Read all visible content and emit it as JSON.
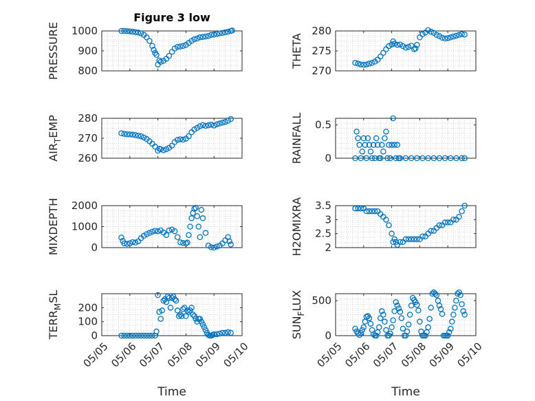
{
  "chart_data": [
    {
      "type": "scatter",
      "title": "Figure 3 low",
      "ylabel": "PRESSURE",
      "xlabel": "",
      "xlim": [
        0,
        5
      ],
      "ylim": [
        800,
        1000
      ],
      "yticks": [
        800,
        900,
        1000
      ],
      "yticklabels": [
        "800",
        "900",
        "1000"
      ],
      "grid": true,
      "series": [
        {
          "x": [
            0.7,
            0.8,
            0.9,
            1.0,
            1.1,
            1.2,
            1.3,
            1.4,
            1.5,
            1.6,
            1.7,
            1.8,
            1.85,
            1.9,
            1.95,
            2.0,
            2.05,
            2.1,
            2.2,
            2.3,
            2.4,
            2.5,
            2.6,
            2.7,
            2.8,
            2.9,
            3.0,
            3.1,
            3.2,
            3.3,
            3.4,
            3.5,
            3.6,
            3.7,
            3.8,
            3.9,
            4.0,
            4.1,
            4.2,
            4.3,
            4.4,
            4.5,
            4.6,
            4.65
          ],
          "y": [
            1000,
            1000,
            999,
            998,
            996,
            994,
            992,
            988,
            980,
            968,
            950,
            925,
            905,
            890,
            880,
            832,
            852,
            845,
            850,
            860,
            875,
            895,
            912,
            920,
            922,
            925,
            930,
            940,
            950,
            958,
            962,
            968,
            970,
            972,
            975,
            980,
            982,
            985,
            988,
            990,
            993,
            996,
            1000,
            1002
          ]
        }
      ]
    },
    {
      "type": "scatter",
      "ylabel": "THETA",
      "xlabel": "",
      "xlim": [
        0,
        5
      ],
      "ylim": [
        270,
        280
      ],
      "yticks": [
        270,
        275,
        280
      ],
      "yticklabels": [
        "270",
        "275",
        "280"
      ],
      "grid": true,
      "series": [
        {
          "x": [
            0.7,
            0.8,
            0.9,
            1.0,
            1.1,
            1.2,
            1.3,
            1.4,
            1.5,
            1.6,
            1.7,
            1.8,
            1.9,
            2.0,
            2.05,
            2.1,
            2.2,
            2.3,
            2.4,
            2.5,
            2.6,
            2.7,
            2.8,
            2.85,
            2.9,
            3.0,
            3.1,
            3.2,
            3.3,
            3.4,
            3.5,
            3.6,
            3.7,
            3.8,
            3.9,
            4.0,
            4.1,
            4.2,
            4.3,
            4.4,
            4.5,
            4.6
          ],
          "y": [
            272,
            271.8,
            271.6,
            271.5,
            271.6,
            271.8,
            272,
            272.3,
            272.8,
            273.6,
            274.5,
            275.4,
            276.2,
            276.6,
            277.4,
            276.8,
            276.5,
            276.6,
            276.2,
            275.8,
            276,
            276.3,
            275.4,
            275.6,
            276.5,
            278.4,
            279.2,
            279.6,
            280.2,
            279.8,
            279.5,
            279,
            278.7,
            278.3,
            278.1,
            278.2,
            278.4,
            278.6,
            278.8,
            279,
            279.2,
            279.1
          ]
        }
      ]
    },
    {
      "type": "scatter",
      "ylabel": "AIR_TEMP",
      "xlabel": "",
      "xlim": [
        0,
        5
      ],
      "ylim": [
        260,
        280
      ],
      "yticks": [
        260,
        270,
        280
      ],
      "yticklabels": [
        "260",
        "270",
        "280"
      ],
      "grid": true,
      "series": [
        {
          "x": [
            0.7,
            0.8,
            0.9,
            1.0,
            1.1,
            1.2,
            1.3,
            1.4,
            1.5,
            1.6,
            1.7,
            1.8,
            1.9,
            2.0,
            2.05,
            2.1,
            2.2,
            2.3,
            2.4,
            2.5,
            2.6,
            2.7,
            2.8,
            2.9,
            3.0,
            3.1,
            3.2,
            3.3,
            3.4,
            3.5,
            3.6,
            3.7,
            3.8,
            3.9,
            4.0,
            4.1,
            4.2,
            4.3,
            4.4,
            4.5,
            4.6
          ],
          "y": [
            272.5,
            272.2,
            272,
            271.9,
            271.8,
            271.6,
            271.3,
            271,
            270.4,
            269.6,
            268.5,
            267.2,
            265.8,
            263.8,
            264.8,
            264.5,
            264,
            264.5,
            265.2,
            266.3,
            268.1,
            269.2,
            269.5,
            269.3,
            269.8,
            271,
            273,
            274.4,
            275.2,
            276,
            276.6,
            276.2,
            276.5,
            276.8,
            276.4,
            277,
            277.4,
            277.8,
            278.2,
            278.8,
            279.6
          ]
        }
      ]
    },
    {
      "type": "scatter",
      "ylabel": "RAINFALL",
      "xlabel": "",
      "xlim": [
        0,
        5
      ],
      "ylim": [
        0,
        0.6
      ],
      "yticks": [
        0,
        0.5
      ],
      "yticklabels": [
        "0",
        "0.5"
      ],
      "grid": true,
      "series": [
        {
          "x": [
            0.7,
            0.75,
            0.8,
            0.85,
            0.9,
            0.95,
            1.0,
            1.05,
            1.1,
            1.15,
            1.2,
            1.25,
            1.3,
            1.35,
            1.4,
            1.45,
            1.5,
            1.55,
            1.6,
            1.65,
            1.7,
            1.75,
            1.8,
            1.85,
            1.9,
            1.95,
            2.0,
            2.05,
            2.1,
            2.15,
            2.2,
            2.25,
            2.3,
            2.5,
            2.7,
            2.9,
            3.1,
            3.3,
            3.5,
            3.7,
            3.9,
            4.1,
            4.3,
            4.5,
            4.6
          ],
          "y": [
            0,
            0.4,
            0.3,
            0.2,
            0,
            0.1,
            0.3,
            0.2,
            0,
            0.3,
            0.2,
            0.1,
            0,
            0.2,
            0,
            0.3,
            0.2,
            0,
            0,
            0.2,
            0.1,
            0.3,
            0.4,
            0,
            0.2,
            0,
            0.2,
            0.6,
            0.2,
            0,
            0.2,
            0,
            0,
            0,
            0,
            0,
            0,
            0,
            0,
            0,
            0,
            0,
            0,
            0,
            0
          ]
        }
      ]
    },
    {
      "type": "scatter",
      "ylabel": "MIXDEPTH",
      "xlabel": "",
      "xlim": [
        0,
        5
      ],
      "ylim": [
        0,
        2000
      ],
      "yticks": [
        0,
        1000,
        2000
      ],
      "yticklabels": [
        "0",
        "1000",
        "2000"
      ],
      "grid": true,
      "series": [
        {
          "x": [
            0.7,
            0.75,
            0.8,
            0.9,
            1.0,
            1.1,
            1.2,
            1.3,
            1.4,
            1.5,
            1.6,
            1.7,
            1.8,
            1.9,
            2.0,
            2.1,
            2.2,
            2.3,
            2.4,
            2.5,
            2.6,
            2.7,
            2.8,
            2.9,
            3.0,
            3.05,
            3.1,
            3.15,
            3.2,
            3.25,
            3.3,
            3.35,
            3.4,
            3.45,
            3.5,
            3.55,
            3.6,
            3.7,
            3.8,
            3.9,
            4.0,
            4.1,
            4.2,
            4.3,
            4.4,
            4.5,
            4.55,
            4.6
          ],
          "y": [
            480,
            320,
            200,
            180,
            210,
            260,
            240,
            300,
            450,
            560,
            640,
            700,
            760,
            800,
            780,
            820,
            720,
            600,
            820,
            860,
            780,
            500,
            250,
            220,
            200,
            240,
            600,
            1000,
            1400,
            1650,
            1850,
            1900,
            1500,
            1000,
            500,
            1800,
            1400,
            700,
            100,
            20,
            0,
            50,
            100,
            200,
            350,
            500,
            300,
            150
          ]
        }
      ]
    },
    {
      "type": "scatter",
      "ylabel": "H2OMIXRA",
      "xlabel": "",
      "xlim": [
        0,
        5
      ],
      "ylim": [
        2,
        3.5
      ],
      "yticks": [
        2,
        2.5,
        3,
        3.5
      ],
      "yticklabels": [
        "2",
        "2.5",
        "3",
        "3.5"
      ],
      "grid": true,
      "series": [
        {
          "x": [
            0.7,
            0.8,
            0.9,
            1.0,
            1.1,
            1.2,
            1.3,
            1.4,
            1.5,
            1.6,
            1.7,
            1.8,
            1.9,
            2.0,
            2.05,
            2.1,
            2.15,
            2.2,
            2.3,
            2.4,
            2.5,
            2.6,
            2.7,
            2.8,
            2.9,
            3.0,
            3.1,
            3.2,
            3.3,
            3.4,
            3.5,
            3.6,
            3.7,
            3.8,
            3.9,
            4.0,
            4.1,
            4.2,
            4.3,
            4.4,
            4.5,
            4.6
          ],
          "y": [
            3.4,
            3.4,
            3.4,
            3.4,
            3.3,
            3.3,
            3.3,
            3.3,
            3.3,
            3.2,
            3.1,
            3.0,
            2.8,
            2.5,
            2.2,
            2.3,
            2.2,
            2.1,
            2.2,
            2.2,
            2.3,
            2.3,
            2.3,
            2.3,
            2.3,
            2.3,
            2.4,
            2.4,
            2.5,
            2.6,
            2.6,
            2.7,
            2.8,
            2.8,
            2.9,
            2.9,
            2.9,
            3.0,
            3.0,
            3.1,
            3.3,
            3.5
          ]
        }
      ]
    },
    {
      "type": "scatter",
      "ylabel": "TERR_MSL",
      "xlabel": "Time",
      "xlim": [
        0,
        5
      ],
      "ylim": [
        0,
        300
      ],
      "yticks": [
        0,
        100,
        200
      ],
      "yticklabels": [
        "0",
        "100",
        "200"
      ],
      "xticks": [
        0,
        1,
        2,
        3,
        4,
        5
      ],
      "xticklabels": [
        "05/05",
        "05/06",
        "05/07",
        "05/08",
        "05/09",
        "05/10"
      ],
      "grid": true,
      "series": [
        {
          "x": [
            0.7,
            0.8,
            0.9,
            1.0,
            1.1,
            1.2,
            1.3,
            1.4,
            1.5,
            1.6,
            1.7,
            1.8,
            1.9,
            1.95,
            2.0,
            2.05,
            2.1,
            2.15,
            2.2,
            2.25,
            2.3,
            2.35,
            2.4,
            2.45,
            2.5,
            2.55,
            2.6,
            2.65,
            2.7,
            2.75,
            2.8,
            2.85,
            2.9,
            2.95,
            3.0,
            3.05,
            3.1,
            3.15,
            3.2,
            3.25,
            3.3,
            3.35,
            3.4,
            3.45,
            3.5,
            3.55,
            3.6,
            3.65,
            3.7,
            3.75,
            3.8,
            3.85,
            3.9,
            3.95,
            4.0,
            4.1,
            4.2,
            4.3,
            4.4,
            4.5,
            4.6
          ],
          "y": [
            0,
            0,
            0,
            0,
            0,
            0,
            0,
            0,
            0,
            0,
            0,
            0,
            0,
            30,
            290,
            170,
            120,
            180,
            250,
            260,
            240,
            280,
            270,
            200,
            270,
            280,
            260,
            250,
            180,
            140,
            150,
            140,
            190,
            200,
            140,
            180,
            170,
            180,
            200,
            150,
            140,
            120,
            100,
            120,
            120,
            100,
            80,
            60,
            40,
            20,
            5,
            0,
            0,
            5,
            10,
            10,
            15,
            20,
            20,
            25,
            20
          ]
        }
      ]
    },
    {
      "type": "scatter",
      "ylabel": "SUN_FLUX",
      "xlabel": "Time",
      "xlim": [
        0,
        5
      ],
      "ylim": [
        0,
        600
      ],
      "yticks": [
        0,
        500
      ],
      "yticklabels": [
        "0",
        "500"
      ],
      "xticks": [
        0,
        1,
        2,
        3,
        4,
        5
      ],
      "xticklabels": [
        "05/05",
        "05/06",
        "05/07",
        "05/08",
        "05/09",
        "05/10"
      ],
      "grid": true,
      "series": [
        {
          "x": [
            0.7,
            0.75,
            0.8,
            0.85,
            0.9,
            0.95,
            1.0,
            1.05,
            1.1,
            1.15,
            1.2,
            1.25,
            1.3,
            1.35,
            1.4,
            1.45,
            1.5,
            1.55,
            1.6,
            1.65,
            1.7,
            1.75,
            1.8,
            1.85,
            1.9,
            1.95,
            2.0,
            2.05,
            2.1,
            2.15,
            2.2,
            2.25,
            2.3,
            2.35,
            2.4,
            2.45,
            2.5,
            2.55,
            2.6,
            2.65,
            2.7,
            2.75,
            2.8,
            2.85,
            2.9,
            2.95,
            3.0,
            3.05,
            3.1,
            3.15,
            3.2,
            3.25,
            3.3,
            3.35,
            3.4,
            3.45,
            3.5,
            3.55,
            3.6,
            3.65,
            3.7,
            3.75,
            3.8,
            3.85,
            3.9,
            3.95,
            4.0,
            4.05,
            4.1,
            4.15,
            4.2,
            4.25,
            4.3,
            4.35,
            4.4,
            4.45,
            4.5,
            4.55,
            4.6
          ],
          "y": [
            100,
            60,
            30,
            10,
            40,
            80,
            120,
            200,
            270,
            280,
            250,
            170,
            80,
            20,
            0,
            0,
            50,
            120,
            250,
            350,
            300,
            200,
            80,
            0,
            0,
            30,
            120,
            220,
            350,
            480,
            430,
            390,
            340,
            250,
            100,
            0,
            0,
            60,
            160,
            300,
            430,
            540,
            510,
            480,
            440,
            360,
            200,
            60,
            0,
            0,
            0,
            50,
            120,
            240,
            400,
            600,
            620,
            600,
            580,
            500,
            430,
            380,
            310,
            0,
            0,
            0,
            0,
            50,
            100,
            200,
            300,
            400,
            500,
            600,
            620,
            580,
            450,
            350,
            300
          ]
        }
      ]
    }
  ]
}
